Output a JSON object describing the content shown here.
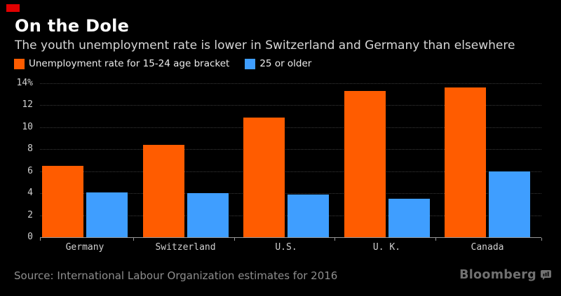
{
  "page": {
    "background": "#000000",
    "badge_color": "#e00000"
  },
  "header": {
    "title": "On the Dole",
    "subtitle": "The youth unemployment rate is lower in Switzerland and Germany than elsewhere"
  },
  "footer": {
    "source": "Source: International Labour Organization estimates for 2016",
    "brand": "Bloomberg",
    "brand_icon": "bloomberg-terminal-icon",
    "brand_color": "#717171"
  },
  "chart_data": {
    "type": "bar",
    "categories": [
      "Germany",
      "Switzerland",
      "U.S.",
      "U. K.",
      "Canada"
    ],
    "series": [
      {
        "name": "Unemployment rate for 15-24 age bracket",
        "color": "#ff5c00",
        "values": [
          6.5,
          8.4,
          10.9,
          13.3,
          13.6
        ]
      },
      {
        "name": "25 or older",
        "color": "#3f9eff",
        "values": [
          4.1,
          4.0,
          3.9,
          3.5,
          6.0
        ]
      }
    ],
    "title": "On the Dole",
    "xlabel": "",
    "ylabel": "",
    "ylim": [
      0,
      14
    ],
    "y_tick_labels": [
      "14%",
      "12",
      "10",
      "8",
      "6",
      "4",
      "2",
      "0"
    ],
    "y_tick_values": [
      14,
      12,
      10,
      8,
      6,
      4,
      2,
      0
    ],
    "grid": "horizontal-dotted",
    "gridline_color": "#3a3a3a",
    "axis_color": "#999999",
    "tick_label_color": "#cfcfcf",
    "legend_position": "top-left"
  }
}
